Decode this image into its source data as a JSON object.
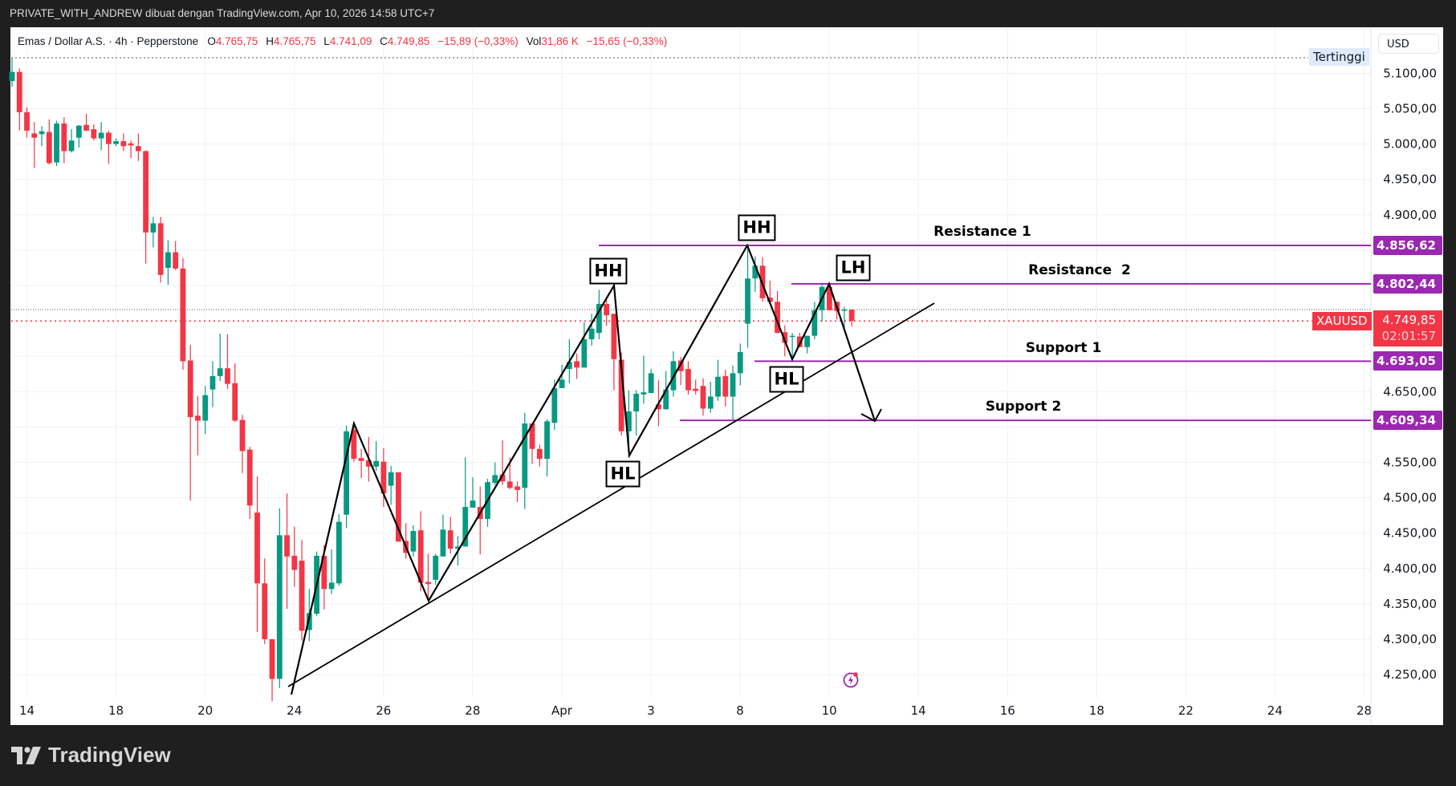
{
  "header": {
    "title": "PRIVATE_WITH_ANDREW dibuat dengan TradingView.com, Apr 10, 2026 14:58 UTC+7"
  },
  "legend": {
    "symbol": "Emas / Dollar A.S. · 4h · Pepperstone",
    "o_label": "O",
    "o": "4.765,75",
    "h_label": "H",
    "h": "4.765,75",
    "l_label": "L",
    "l": "4.741,09",
    "c_label": "C",
    "c": "4.749,85",
    "change": "−15,89 (−0,33%)",
    "vol_label": "Vol",
    "vol": "31,86 K",
    "vol_change": "−15,65 (−0,33%)"
  },
  "currency_button": "USD",
  "high_marker": "Tertinggi",
  "current_price": {
    "symbol": "XAUUSD",
    "price": "4.749,85",
    "countdown": "02:01:57"
  },
  "levels": [
    {
      "label": "Resistance 1",
      "price": 4856.62,
      "tag": "4.856,62"
    },
    {
      "label": "Resistance  2",
      "price": 4802.44,
      "tag": "4.802,44"
    },
    {
      "label": "Support 1",
      "price": 4693.05,
      "tag": "4.693,05"
    },
    {
      "label": "Support 2",
      "price": 4609.34,
      "tag": "4.609,34"
    }
  ],
  "pivots": [
    "HH",
    "HH",
    "LH",
    "HL",
    "HL"
  ],
  "footer": {
    "brand": "TradingView"
  },
  "icons": {
    "alert": "lightning-icon",
    "logo": "tradingview-logo-icon"
  },
  "colors": {
    "up": "#089981",
    "down": "#f23645",
    "level": "#9c27b0",
    "drawing": "#000000"
  },
  "chart_data": {
    "type": "candlestick",
    "title": "Emas / Dollar A.S. · 4h · Pepperstone",
    "timeframe": "4h",
    "x_ticks": [
      "14",
      "18",
      "20",
      "24",
      "26",
      "28",
      "Apr",
      "3",
      "8",
      "10",
      "14",
      "16",
      "18",
      "22",
      "24",
      "28"
    ],
    "y_ticks": [
      "5.100,00",
      "5.050,00",
      "5.000,00",
      "4.950,00",
      "4.900,00",
      "4.650,00",
      "4.550,00",
      "4.500,00",
      "4.450,00",
      "4.400,00",
      "4.350,00",
      "4.300,00",
      "4.250,00"
    ],
    "ylim": [
      4225,
      5125
    ],
    "grid": true,
    "candle_format": [
      "open",
      "high",
      "low",
      "close"
    ],
    "candles": [
      [
        5089,
        5122,
        5081,
        5102
      ],
      [
        5102,
        5107,
        5019,
        5045
      ],
      [
        5045,
        5052,
        5009,
        5019
      ],
      [
        5015,
        5031,
        4966,
        5009
      ],
      [
        5014,
        5025,
        4997,
        5018
      ],
      [
        5017,
        5035,
        4971,
        4973
      ],
      [
        4974,
        5033,
        4969,
        5029
      ],
      [
        5029,
        5038,
        4973,
        4990
      ],
      [
        4990,
        5021,
        4988,
        5005
      ],
      [
        5009,
        5027,
        4995,
        5026
      ],
      [
        5027,
        5043,
        5018,
        5019
      ],
      [
        5021,
        5028,
        5005,
        5008
      ],
      [
        5008,
        5031,
        4991,
        5016
      ],
      [
        5016,
        5019,
        4972,
        5000
      ],
      [
        5000,
        5008,
        4997,
        5004
      ],
      [
        5004,
        5015,
        4990,
        4997
      ],
      [
        5001,
        5005,
        4980,
        4998
      ],
      [
        4997,
        5015,
        4976,
        4990
      ],
      [
        4990,
        4991,
        4831,
        4875
      ],
      [
        4875,
        4897,
        4854,
        4888
      ],
      [
        4888,
        4897,
        4804,
        4815
      ],
      [
        4825,
        4864,
        4801,
        4847
      ],
      [
        4847,
        4863,
        4822,
        4824
      ],
      [
        4824,
        4839,
        4681,
        4693
      ],
      [
        4694,
        4716,
        4496,
        4614
      ],
      [
        4616,
        4644,
        4560,
        4609
      ],
      [
        4609,
        4658,
        4590,
        4645
      ],
      [
        4653,
        4693,
        4628,
        4672
      ],
      [
        4672,
        4732,
        4665,
        4683
      ],
      [
        4683,
        4731,
        4654,
        4661
      ],
      [
        4662,
        4690,
        4607,
        4609
      ],
      [
        4610,
        4617,
        4535,
        4566
      ],
      [
        4568,
        4572,
        4470,
        4489
      ],
      [
        4479,
        4530,
        4310,
        4379
      ],
      [
        4379,
        4414,
        4293,
        4300
      ],
      [
        4300,
        4300,
        4212,
        4244
      ],
      [
        4244,
        4485,
        4231,
        4447
      ],
      [
        4447,
        4506,
        4343,
        4417
      ],
      [
        4418,
        4459,
        4374,
        4398
      ],
      [
        4411,
        4440,
        4298,
        4312
      ],
      [
        4313,
        4371,
        4297,
        4337
      ],
      [
        4336,
        4424,
        4333,
        4418
      ],
      [
        4418,
        4433,
        4342,
        4371
      ],
      [
        4371,
        4427,
        4364,
        4380
      ],
      [
        4379,
        4477,
        4376,
        4466
      ],
      [
        4476,
        4602,
        4457,
        4594
      ],
      [
        4596,
        4605,
        4551,
        4555
      ],
      [
        4556,
        4569,
        4528,
        4552
      ],
      [
        4553,
        4586,
        4523,
        4544
      ],
      [
        4544,
        4580,
        4538,
        4552
      ],
      [
        4551,
        4570,
        4487,
        4506
      ],
      [
        4517,
        4545,
        4490,
        4536
      ],
      [
        4536,
        4536,
        4438,
        4438
      ],
      [
        4439,
        4464,
        4414,
        4422
      ],
      [
        4424,
        4461,
        4417,
        4453
      ],
      [
        4454,
        4481,
        4368,
        4380
      ],
      [
        4381,
        4421,
        4355,
        4378
      ],
      [
        4384,
        4421,
        4377,
        4418
      ],
      [
        4417,
        4476,
        4417,
        4455
      ],
      [
        4454,
        4473,
        4421,
        4428
      ],
      [
        4428,
        4446,
        4404,
        4431
      ],
      [
        4431,
        4557,
        4431,
        4487
      ],
      [
        4486,
        4529,
        4486,
        4496
      ],
      [
        4487,
        4516,
        4420,
        4470
      ],
      [
        4470,
        4527,
        4459,
        4522
      ],
      [
        4521,
        4550,
        4518,
        4532
      ],
      [
        4533,
        4581,
        4518,
        4523
      ],
      [
        4523,
        4557,
        4512,
        4514
      ],
      [
        4516,
        4523,
        4494,
        4511
      ],
      [
        4514,
        4620,
        4484,
        4605
      ],
      [
        4605,
        4605,
        4548,
        4569
      ],
      [
        4569,
        4575,
        4544,
        4555
      ],
      [
        4555,
        4611,
        4530,
        4608
      ],
      [
        4606,
        4667,
        4596,
        4655
      ],
      [
        4655,
        4688,
        4655,
        4667
      ],
      [
        4682,
        4724,
        4662,
        4692
      ],
      [
        4693,
        4704,
        4668,
        4684
      ],
      [
        4684,
        4748,
        4684,
        4724
      ],
      [
        4724,
        4760,
        4715,
        4739
      ],
      [
        4733,
        4794,
        4724,
        4774
      ],
      [
        4774,
        4780,
        4743,
        4758
      ],
      [
        4760,
        4760,
        4652,
        4696
      ],
      [
        4695,
        4705,
        4588,
        4594
      ],
      [
        4594,
        4652,
        4557,
        4622
      ],
      [
        4622,
        4652,
        4588,
        4647
      ],
      [
        4646,
        4701,
        4633,
        4649
      ],
      [
        4648,
        4682,
        4648,
        4676
      ],
      [
        4632,
        4666,
        4601,
        4625
      ],
      [
        4625,
        4679,
        4625,
        4653
      ],
      [
        4652,
        4707,
        4643,
        4693
      ],
      [
        4694,
        4699,
        4659,
        4679
      ],
      [
        4682,
        4693,
        4646,
        4652
      ],
      [
        4654,
        4667,
        4646,
        4651
      ],
      [
        4658,
        4669,
        4616,
        4626
      ],
      [
        4626,
        4664,
        4620,
        4643
      ],
      [
        4643,
        4695,
        4637,
        4671
      ],
      [
        4672,
        4681,
        4629,
        4643
      ],
      [
        4643,
        4687,
        4610,
        4676
      ],
      [
        4676,
        4718,
        4659,
        4706
      ],
      [
        4746,
        4857,
        4712,
        4810
      ],
      [
        4810,
        4841,
        4791,
        4828
      ],
      [
        4828,
        4840,
        4777,
        4782
      ],
      [
        4783,
        4807,
        4777,
        4777
      ],
      [
        4777,
        4792,
        4733,
        4733
      ],
      [
        4734,
        4744,
        4700,
        4719
      ],
      [
        4728,
        4733,
        4693,
        4729
      ],
      [
        4728,
        4733,
        4713,
        4713
      ],
      [
        4713,
        4729,
        4704,
        4729
      ],
      [
        4729,
        4777,
        4724,
        4765
      ],
      [
        4765,
        4801,
        4749,
        4798
      ],
      [
        4798,
        4804,
        4765,
        4765
      ],
      [
        4777,
        4777,
        4752,
        4764
      ],
      [
        4765,
        4770,
        4739,
        4766
      ],
      [
        4766,
        4766,
        4742,
        4750
      ]
    ],
    "last_price": 4749.85,
    "previous_close": 4766
  }
}
